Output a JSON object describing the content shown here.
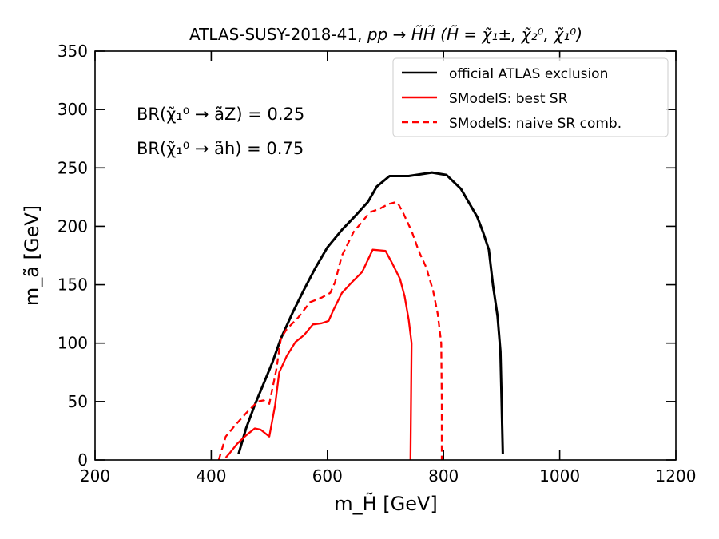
{
  "chart_data": {
    "type": "line",
    "title_prefix": "ATLAS-SUSY-2018-41, ",
    "title_math": "pp → H̃H̃ (H̃ = χ̃₁±, χ̃₂⁰, χ̃₁⁰)",
    "xlabel": "m_H̃ [GeV]",
    "ylabel": "m_ã [GeV]",
    "xlim": [
      200,
      1200
    ],
    "ylim": [
      0,
      350
    ],
    "xticks": [
      200,
      400,
      600,
      800,
      1000,
      1200
    ],
    "yticks": [
      0,
      50,
      100,
      150,
      200,
      250,
      300,
      350
    ],
    "annotations": [
      "BR(χ̃₁⁰ → ãZ) = 0.25",
      "BR(χ̃₁⁰ → ãh) = 0.75"
    ],
    "legend_position": "top-right",
    "series": [
      {
        "name": "official ATLAS exclusion",
        "color": "#000000",
        "style": "solid",
        "points": [
          [
            447,
            5
          ],
          [
            460,
            27
          ],
          [
            475,
            47
          ],
          [
            490,
            65
          ],
          [
            505,
            83
          ],
          [
            520,
            104
          ],
          [
            540,
            126
          ],
          [
            560,
            146
          ],
          [
            580,
            165
          ],
          [
            600,
            182
          ],
          [
            625,
            197
          ],
          [
            650,
            210
          ],
          [
            670,
            221
          ],
          [
            685,
            234
          ],
          [
            707,
            243
          ],
          [
            740,
            243
          ],
          [
            780,
            246
          ],
          [
            805,
            244
          ],
          [
            830,
            232
          ],
          [
            858,
            208
          ],
          [
            868,
            195
          ],
          [
            878,
            180
          ],
          [
            885,
            150
          ],
          [
            893,
            123
          ],
          [
            898,
            93
          ],
          [
            900,
            50
          ],
          [
            902,
            5
          ]
        ]
      },
      {
        "name": "SModelS: best SR",
        "color": "#ff0000",
        "style": "solid",
        "points": [
          [
            425,
            2
          ],
          [
            432,
            6
          ],
          [
            445,
            14
          ],
          [
            460,
            21
          ],
          [
            475,
            27
          ],
          [
            485,
            26
          ],
          [
            500,
            20
          ],
          [
            510,
            47
          ],
          [
            517,
            75
          ],
          [
            530,
            89
          ],
          [
            545,
            101
          ],
          [
            560,
            107
          ],
          [
            575,
            116
          ],
          [
            590,
            117
          ],
          [
            602,
            119
          ],
          [
            610,
            128
          ],
          [
            625,
            143
          ],
          [
            640,
            151
          ],
          [
            660,
            161
          ],
          [
            678,
            180
          ],
          [
            700,
            179
          ],
          [
            712,
            168
          ],
          [
            725,
            155
          ],
          [
            733,
            140
          ],
          [
            740,
            120
          ],
          [
            745,
            100
          ],
          [
            744,
            50
          ],
          [
            743,
            0
          ]
        ]
      },
      {
        "name": "SModelS: naive SR comb.",
        "color": "#ff0000",
        "style": "dashed",
        "points": [
          [
            413,
            0
          ],
          [
            425,
            20
          ],
          [
            440,
            29
          ],
          [
            460,
            40
          ],
          [
            480,
            50
          ],
          [
            490,
            51
          ],
          [
            500,
            48
          ],
          [
            505,
            60
          ],
          [
            512,
            77
          ],
          [
            520,
            104
          ],
          [
            530,
            112
          ],
          [
            550,
            122
          ],
          [
            570,
            135
          ],
          [
            590,
            139
          ],
          [
            605,
            143
          ],
          [
            613,
            152
          ],
          [
            625,
            175
          ],
          [
            645,
            195
          ],
          [
            660,
            204
          ],
          [
            673,
            212
          ],
          [
            690,
            215
          ],
          [
            705,
            219
          ],
          [
            720,
            221
          ],
          [
            730,
            212
          ],
          [
            745,
            196
          ],
          [
            758,
            178
          ],
          [
            770,
            165
          ],
          [
            782,
            145
          ],
          [
            790,
            125
          ],
          [
            796,
            100
          ],
          [
            797,
            50
          ],
          [
            797,
            0
          ]
        ]
      }
    ]
  }
}
